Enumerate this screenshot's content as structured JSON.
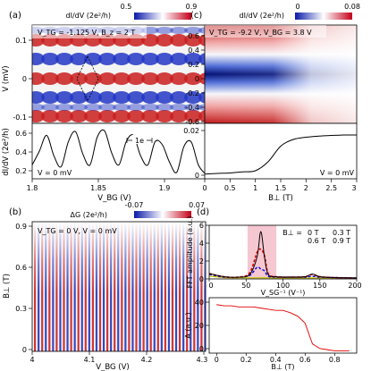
{
  "panel_a": {
    "label": "(a)",
    "colorbar_label": "dI/dV (2e²/h)",
    "colorbar_min": "0.5",
    "colorbar_max": "0.9",
    "annotation": "V_TG = -1.125 V, B_z = 2 T",
    "ylabel_top": "V (mV)",
    "ylabel_bottom": "dI/dV (2e²/h)",
    "xlabel": "V_BG (V)",
    "bottom_annotation": "V = 0 mV",
    "period_label": "1e",
    "top_yticks": [
      "0.1",
      "0",
      "-0.1"
    ],
    "bottom_yticks": [
      "0.6",
      "0.4",
      "0.2"
    ],
    "xticks": [
      "1.8",
      "1.85",
      "1.9"
    ]
  },
  "panel_b": {
    "label": "(b)",
    "colorbar_label": "ΔG (2e²/h)",
    "colorbar_min": "-0.07",
    "colorbar_max": "0.07",
    "annotation": "V_TG = 0 V, V = 0 mV",
    "ylabel": "B⊥ (T)",
    "xlabel": "V_BG (V)",
    "yticks": [
      "0.9",
      "0.6",
      "0.3",
      "0"
    ],
    "xticks": [
      "4",
      "4.1",
      "4.2",
      "4.3"
    ]
  },
  "panel_c": {
    "label": "(c)",
    "colorbar_label": "dI/dV (2e²/h)",
    "colorbar_min": "0",
    "colorbar_max": "0.08",
    "annotation": "V_TG = -9.2 V, V_BG = 3.8 V",
    "top_yticks": [
      "0.6",
      "0.4",
      "0.2",
      "0",
      "-0.2",
      "-0.4",
      "-0.6"
    ],
    "bottom_yticks": [
      "0.02",
      "0"
    ],
    "xlabel": "B⊥ (T)",
    "bottom_annotation": "V = 0 mV",
    "xticks": [
      "0",
      "0.5",
      "1",
      "1.5",
      "2",
      "2.5",
      "3"
    ]
  },
  "panel_d": {
    "label": "(d)",
    "ylabel_top": "FFT amplitude (a.u.)",
    "xlabel_top": "V_SG⁻¹ (V⁻¹)",
    "legend_title": "B⊥ =",
    "legend": [
      {
        "name": "0 T",
        "color": "#000000"
      },
      {
        "name": "0.3 T",
        "color": "#e00000"
      },
      {
        "name": "0.6 T",
        "color": "#0000e0"
      },
      {
        "name": "0.9 T",
        "color": "#c8c800"
      }
    ],
    "top_yticks": [
      "6",
      "4",
      "2",
      "0"
    ],
    "top_xticks": [
      "0",
      "50",
      "100",
      "150",
      "200"
    ],
    "ylabel_bottom": "A (a.u.)",
    "xlabel_bottom": "B⊥ (T)",
    "bottom_yticks": [
      "40",
      "20",
      "0"
    ],
    "bottom_xticks": [
      "0",
      "0.2",
      "0.4",
      "0.6",
      "0.8"
    ]
  },
  "chart_data": [
    {
      "panel": "a-bottom",
      "type": "line",
      "xlabel": "V_BG (V)",
      "ylabel": "dI/dV (2e²/h)",
      "xlim": [
        1.8,
        1.92
      ],
      "ylim": [
        0.15,
        0.75
      ],
      "x": [
        1.8,
        1.805,
        1.81,
        1.815,
        1.82,
        1.825,
        1.83,
        1.835,
        1.84,
        1.845,
        1.85,
        1.855,
        1.86,
        1.865,
        1.87,
        1.875,
        1.88,
        1.885,
        1.89,
        1.895,
        1.9,
        1.905,
        1.91,
        1.915,
        1.92
      ],
      "y": [
        0.3,
        0.45,
        0.62,
        0.4,
        0.28,
        0.55,
        0.66,
        0.42,
        0.3,
        0.6,
        0.67,
        0.43,
        0.3,
        0.55,
        0.62,
        0.4,
        0.3,
        0.55,
        0.52,
        0.33,
        0.22,
        0.5,
        0.55,
        0.3,
        0.2
      ]
    },
    {
      "panel": "c-bottom",
      "type": "line",
      "xlabel": "B⊥ (T)",
      "ylabel": "dI/dV (2e²/h)",
      "xlim": [
        0,
        3
      ],
      "ylim": [
        0,
        0.02
      ],
      "x": [
        0,
        0.25,
        0.5,
        0.75,
        1.0,
        1.25,
        1.5,
        1.75,
        2.0,
        2.25,
        2.5,
        2.75,
        3.0
      ],
      "y": [
        0.0005,
        0.0008,
        0.001,
        0.0015,
        0.002,
        0.006,
        0.013,
        0.016,
        0.017,
        0.0175,
        0.0178,
        0.018,
        0.018
      ]
    },
    {
      "panel": "d-top",
      "type": "line",
      "xlabel": "V_SG⁻¹ (V⁻¹)",
      "ylabel": "FFT amplitude (a.u.)",
      "xlim": [
        0,
        200
      ],
      "ylim": [
        0,
        6
      ],
      "series": [
        {
          "name": "0 T",
          "x": [
            0,
            20,
            40,
            55,
            65,
            70,
            75,
            80,
            90,
            110,
            130,
            140,
            150,
            170,
            200
          ],
          "y": [
            0.6,
            0.25,
            0.2,
            0.5,
            2.5,
            5.3,
            2.4,
            0.5,
            0.25,
            0.2,
            0.25,
            0.55,
            0.25,
            0.15,
            0.1
          ]
        },
        {
          "name": "0.3 T",
          "x": [
            0,
            20,
            40,
            55,
            65,
            70,
            75,
            80,
            90,
            110,
            130,
            140,
            150,
            170,
            200
          ],
          "y": [
            0.6,
            0.25,
            0.2,
            0.7,
            3.0,
            3.3,
            2.6,
            0.6,
            0.25,
            0.2,
            0.25,
            0.5,
            0.25,
            0.15,
            0.1
          ]
        },
        {
          "name": "0.6 T",
          "x": [
            0,
            20,
            40,
            55,
            65,
            70,
            75,
            80,
            90,
            110,
            130,
            140,
            150,
            170,
            200
          ],
          "y": [
            0.5,
            0.2,
            0.2,
            0.4,
            1.3,
            1.1,
            0.9,
            0.3,
            0.2,
            0.2,
            0.2,
            0.3,
            0.2,
            0.15,
            0.1
          ]
        },
        {
          "name": "0.9 T",
          "x": [
            0,
            20,
            40,
            60,
            80,
            100,
            130,
            160,
            200
          ],
          "y": [
            0.3,
            0.15,
            0.12,
            0.12,
            0.12,
            0.1,
            0.1,
            0.1,
            0.1
          ]
        }
      ]
    },
    {
      "panel": "d-bottom",
      "type": "line",
      "xlabel": "B⊥ (T)",
      "ylabel": "A (a.u.)",
      "xlim": [
        -0.05,
        0.95
      ],
      "ylim": [
        0,
        48
      ],
      "x": [
        0,
        0.05,
        0.1,
        0.15,
        0.2,
        0.25,
        0.3,
        0.35,
        0.4,
        0.45,
        0.5,
        0.55,
        0.6,
        0.65,
        0.7,
        0.75,
        0.8,
        0.85,
        0.9
      ],
      "y": [
        42,
        41,
        41,
        40,
        40,
        40,
        39,
        38,
        37,
        37,
        35,
        32,
        26,
        8,
        4,
        3,
        2,
        2,
        2
      ]
    }
  ]
}
